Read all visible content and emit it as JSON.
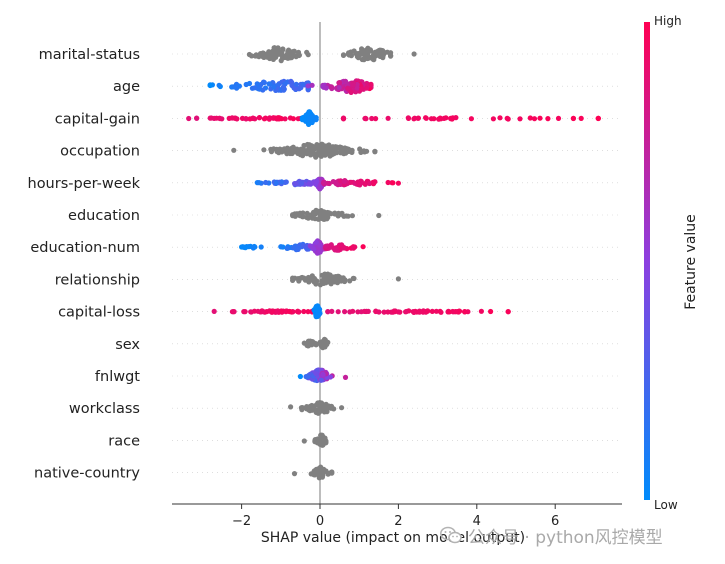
{
  "chart_data": {
    "type": "scatter",
    "subtype": "shap-beeswarm-summary",
    "xlabel": "SHAP value (impact on model output)",
    "xlim": [
      -3.8,
      7.6
    ],
    "xticks": [
      -2,
      0,
      2,
      4,
      6
    ],
    "xtick_labels": [
      "−2",
      "0",
      "2",
      "4",
      "6"
    ],
    "colorbar": {
      "label": "Feature value",
      "high_label": "High",
      "low_label": "Low",
      "low_color": "#008bfb",
      "high_color": "#ff0052"
    },
    "neutral_color": "#808080",
    "features": [
      {
        "name": "marital-status",
        "colored": false,
        "clusters": [
          {
            "min": -1.8,
            "max": -0.3,
            "center": -1.05,
            "spread": 0.35,
            "height": 0.42,
            "n": 80
          },
          {
            "min": 0.6,
            "max": 1.8,
            "center": 1.25,
            "spread": 0.3,
            "height": 0.42,
            "n": 70
          },
          {
            "min": 2.4,
            "max": 2.4,
            "center": 2.4,
            "spread": 0.0,
            "height": 0.0,
            "n": 1
          }
        ]
      },
      {
        "name": "age",
        "colored": true,
        "clusters": [
          {
            "min": -2.8,
            "max": -0.3,
            "center": -0.9,
            "spread": 0.8,
            "height": 0.32,
            "n": 90,
            "cmin": 0.0,
            "cmax": 0.3
          },
          {
            "min": -0.3,
            "max": 1.3,
            "center": 0.8,
            "spread": 0.3,
            "height": 0.42,
            "n": 100,
            "cmin": 0.45,
            "cmax": 1.0
          }
        ]
      },
      {
        "name": "capital-gain",
        "colored": true,
        "clusters": [
          {
            "min": -3.35,
            "max": -0.4,
            "center": -1.5,
            "spread": 0.9,
            "height": 0.05,
            "n": 60,
            "cmin": 0.85,
            "cmax": 1.0
          },
          {
            "min": -0.45,
            "max": -0.1,
            "center": -0.27,
            "spread": 0.07,
            "height": 0.42,
            "n": 60,
            "cmin": 0.0,
            "cmax": 0.05
          },
          {
            "min": 0.6,
            "max": 7.1,
            "center": 3.5,
            "spread": 2.0,
            "height": 0.05,
            "n": 50,
            "cmin": 0.9,
            "cmax": 1.0
          }
        ]
      },
      {
        "name": "occupation",
        "colored": false,
        "clusters": [
          {
            "min": -2.2,
            "max": 1.4,
            "center": -0.1,
            "spread": 0.55,
            "height": 0.42,
            "n": 160
          }
        ]
      },
      {
        "name": "hours-per-week",
        "colored": true,
        "clusters": [
          {
            "min": -1.6,
            "max": -0.1,
            "center": -0.6,
            "spread": 0.45,
            "height": 0.12,
            "n": 60,
            "cmin": 0.0,
            "cmax": 0.5
          },
          {
            "min": -0.1,
            "max": 0.1,
            "center": 0.0,
            "spread": 0.05,
            "height": 0.4,
            "n": 40,
            "cmin": 0.45,
            "cmax": 0.65
          },
          {
            "min": 0.1,
            "max": 2.0,
            "center": 0.8,
            "spread": 0.45,
            "height": 0.15,
            "n": 60,
            "cmin": 0.75,
            "cmax": 1.0
          }
        ]
      },
      {
        "name": "education",
        "colored": false,
        "clusters": [
          {
            "min": -0.7,
            "max": 1.5,
            "center": 0.0,
            "spread": 0.35,
            "height": 0.3,
            "n": 70
          }
        ]
      },
      {
        "name": "education-num",
        "colored": true,
        "clusters": [
          {
            "min": -2.0,
            "max": -1.5,
            "center": -1.75,
            "spread": 0.15,
            "height": 0.08,
            "n": 12,
            "cmin": 0.0,
            "cmax": 0.1
          },
          {
            "min": -1.0,
            "max": -0.2,
            "center": -0.5,
            "spread": 0.2,
            "height": 0.2,
            "n": 35,
            "cmin": 0.0,
            "cmax": 0.35
          },
          {
            "min": -0.25,
            "max": 0.15,
            "center": -0.05,
            "spread": 0.07,
            "height": 0.4,
            "n": 40,
            "cmin": 0.45,
            "cmax": 0.65
          },
          {
            "min": 0.15,
            "max": 1.1,
            "center": 0.45,
            "spread": 0.25,
            "height": 0.2,
            "n": 35,
            "cmin": 0.8,
            "cmax": 1.0
          }
        ]
      },
      {
        "name": "relationship",
        "colored": false,
        "clusters": [
          {
            "min": -0.7,
            "max": 2.0,
            "center": 0.1,
            "spread": 0.35,
            "height": 0.35,
            "n": 80
          }
        ]
      },
      {
        "name": "capital-loss",
        "colored": true,
        "clusters": [
          {
            "min": -2.7,
            "max": -0.2,
            "center": -1.2,
            "spread": 0.6,
            "height": 0.05,
            "n": 55,
            "cmin": 0.85,
            "cmax": 1.0
          },
          {
            "min": -0.15,
            "max": 0.0,
            "center": -0.07,
            "spread": 0.04,
            "height": 0.4,
            "n": 40,
            "cmin": 0.0,
            "cmax": 0.05
          },
          {
            "min": 0.2,
            "max": 4.8,
            "center": 2.5,
            "spread": 1.1,
            "height": 0.05,
            "n": 65,
            "cmin": 0.85,
            "cmax": 1.0
          }
        ]
      },
      {
        "name": "sex",
        "colored": false,
        "clusters": [
          {
            "min": -0.4,
            "max": -0.1,
            "center": -0.25,
            "spread": 0.08,
            "height": 0.2,
            "n": 25
          },
          {
            "min": 0.0,
            "max": 0.2,
            "center": 0.1,
            "spread": 0.05,
            "height": 0.35,
            "n": 25
          }
        ]
      },
      {
        "name": "fnlwgt",
        "colored": true,
        "clusters": [
          {
            "min": -0.5,
            "max": 0.65,
            "center": 0.0,
            "spread": 0.15,
            "height": 0.4,
            "n": 70,
            "cmin": 0.0,
            "cmax": 1.0
          }
        ]
      },
      {
        "name": "workclass",
        "colored": false,
        "clusters": [
          {
            "min": -0.75,
            "max": 0.55,
            "center": 0.0,
            "spread": 0.18,
            "height": 0.35,
            "n": 60
          }
        ]
      },
      {
        "name": "race",
        "colored": false,
        "clusters": [
          {
            "min": -0.4,
            "max": 0.15,
            "center": 0.05,
            "spread": 0.08,
            "height": 0.35,
            "n": 40
          }
        ]
      },
      {
        "name": "native-country",
        "colored": false,
        "clusters": [
          {
            "min": -0.65,
            "max": 0.3,
            "center": 0.0,
            "spread": 0.1,
            "height": 0.35,
            "n": 50
          }
        ]
      }
    ]
  },
  "watermark": {
    "text": "公众号 · python风控模型",
    "icon": "wechat-icon"
  }
}
